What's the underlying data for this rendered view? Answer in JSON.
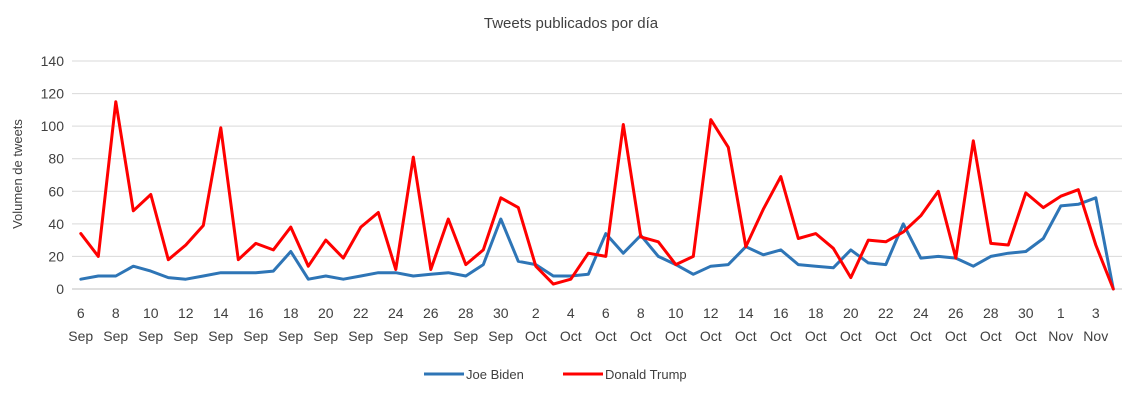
{
  "chart_data": {
    "type": "line",
    "title": "Tweets publicados por día",
    "xlabel": "",
    "ylabel": "Volumen de tweets",
    "ylim": [
      0,
      140
    ],
    "yticks": [
      0,
      20,
      40,
      60,
      80,
      100,
      120,
      140
    ],
    "grid": true,
    "legend_position": "bottom",
    "x": [
      "6 Sep",
      "7 Sep",
      "8 Sep",
      "9 Sep",
      "10 Sep",
      "11 Sep",
      "12 Sep",
      "13 Sep",
      "14 Sep",
      "15 Sep",
      "16 Sep",
      "17 Sep",
      "18 Sep",
      "19 Sep",
      "20 Sep",
      "21 Sep",
      "22 Sep",
      "23 Sep",
      "24 Sep",
      "25 Sep",
      "26 Sep",
      "27 Sep",
      "28 Sep",
      "29 Sep",
      "30 Sep",
      "1 Oct",
      "2 Oct",
      "3 Oct",
      "4 Oct",
      "5 Oct",
      "6 Oct",
      "7 Oct",
      "8 Oct",
      "9 Oct",
      "10 Oct",
      "11 Oct",
      "12 Oct",
      "13 Oct",
      "14 Oct",
      "15 Oct",
      "16 Oct",
      "17 Oct",
      "18 Oct",
      "19 Oct",
      "20 Oct",
      "21 Oct",
      "22 Oct",
      "23 Oct",
      "24 Oct",
      "25 Oct",
      "26 Oct",
      "27 Oct",
      "28 Oct",
      "29 Oct",
      "30 Oct",
      "31 Oct",
      "1 Nov",
      "2 Nov",
      "3 Nov",
      "4 Nov"
    ],
    "tick_labels": [
      {
        "day": "6",
        "month": "Sep"
      },
      {
        "day": "8",
        "month": "Sep"
      },
      {
        "day": "10",
        "month": "Sep"
      },
      {
        "day": "12",
        "month": "Sep"
      },
      {
        "day": "14",
        "month": "Sep"
      },
      {
        "day": "16",
        "month": "Sep"
      },
      {
        "day": "18",
        "month": "Sep"
      },
      {
        "day": "20",
        "month": "Sep"
      },
      {
        "day": "22",
        "month": "Sep"
      },
      {
        "day": "24",
        "month": "Sep"
      },
      {
        "day": "26",
        "month": "Sep"
      },
      {
        "day": "28",
        "month": "Sep"
      },
      {
        "day": "30",
        "month": "Sep"
      },
      {
        "day": "2",
        "month": "Oct"
      },
      {
        "day": "4",
        "month": "Oct"
      },
      {
        "day": "6",
        "month": "Oct"
      },
      {
        "day": "8",
        "month": "Oct"
      },
      {
        "day": "10",
        "month": "Oct"
      },
      {
        "day": "12",
        "month": "Oct"
      },
      {
        "day": "14",
        "month": "Oct"
      },
      {
        "day": "16",
        "month": "Oct"
      },
      {
        "day": "18",
        "month": "Oct"
      },
      {
        "day": "20",
        "month": "Oct"
      },
      {
        "day": "22",
        "month": "Oct"
      },
      {
        "day": "24",
        "month": "Oct"
      },
      {
        "day": "26",
        "month": "Oct"
      },
      {
        "day": "28",
        "month": "Oct"
      },
      {
        "day": "30",
        "month": "Oct"
      },
      {
        "day": "1",
        "month": "Nov"
      },
      {
        "day": "3",
        "month": "Nov"
      }
    ],
    "series": [
      {
        "name": "Joe Biden",
        "color": "#2E75B6",
        "values": [
          6,
          8,
          8,
          14,
          11,
          7,
          6,
          8,
          10,
          10,
          10,
          11,
          23,
          6,
          8,
          6,
          8,
          10,
          10,
          8,
          9,
          10,
          8,
          15,
          43,
          17,
          15,
          8,
          8,
          9,
          34,
          22,
          33,
          20,
          15,
          9,
          14,
          15,
          26,
          21,
          24,
          15,
          14,
          13,
          24,
          16,
          15,
          40,
          19,
          20,
          19,
          14,
          20,
          22,
          23,
          31,
          51,
          52,
          56,
          0
        ]
      },
      {
        "name": "Donald Trump",
        "color": "#FF0000",
        "values": [
          34,
          20,
          115,
          48,
          58,
          18,
          27,
          39,
          99,
          18,
          28,
          24,
          38,
          14,
          30,
          19,
          38,
          47,
          12,
          81,
          12,
          43,
          15,
          24,
          56,
          50,
          14,
          3,
          6,
          22,
          20,
          101,
          32,
          29,
          15,
          20,
          104,
          87,
          26,
          49,
          69,
          31,
          34,
          25,
          7,
          30,
          29,
          35,
          45,
          60,
          19,
          91,
          28,
          27,
          59,
          50,
          57,
          61,
          27,
          0
        ]
      }
    ]
  }
}
